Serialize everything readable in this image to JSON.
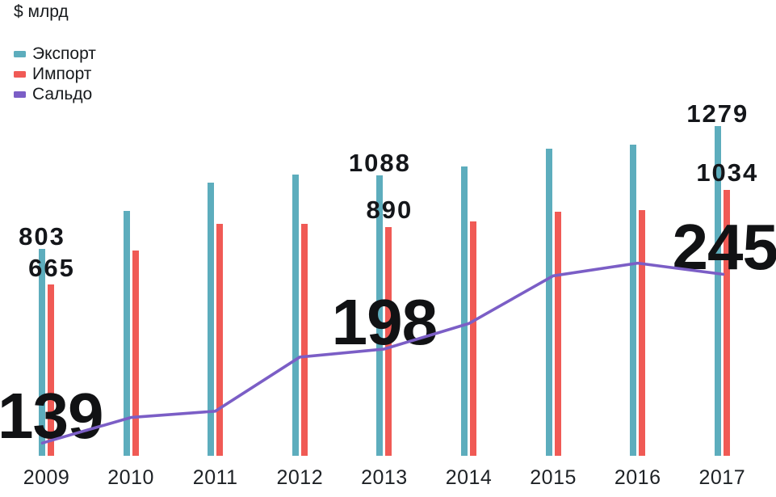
{
  "header": {
    "unit_label": "$ млрд"
  },
  "legend": [
    {
      "label": "Экспорт",
      "color": "#5dadbd"
    },
    {
      "label": "Импорт",
      "color": "#f05a55"
    },
    {
      "label": "Сальдо",
      "color": "#7b5ec6"
    }
  ],
  "chart_data": {
    "type": "bar",
    "title": "",
    "ylabel": "$ млрд",
    "grid": false,
    "axes_hidden": true,
    "legend_position": "top-left",
    "categories": [
      "2009",
      "2010",
      "2011",
      "2012",
      "2013",
      "2014",
      "2015",
      "2016",
      "2017"
    ],
    "series": [
      {
        "name": "Экспорт",
        "type": "bar",
        "color": "#5dadbd",
        "values": [
          803,
          952,
          1061,
          1093,
          1088,
          1124,
          1194,
          1207,
          1279
        ]
      },
      {
        "name": "Импорт",
        "type": "bar",
        "color": "#f05a55",
        "values": [
          665,
          797,
          902,
          900,
          890,
          910,
          949,
          955,
          1034
        ]
      },
      {
        "name": "Сальдо",
        "type": "line",
        "color": "#7b5ec6",
        "values": [
          139,
          155,
          159,
          193,
          198,
          214,
          244,
          252,
          245
        ]
      }
    ],
    "annotations": {
      "labeled_indices": [
        0,
        4,
        8
      ],
      "export_labels": [
        "803",
        "1088",
        "1279"
      ],
      "import_labels": [
        "665",
        "890",
        "1034"
      ],
      "saldo_labels": [
        "139",
        "198",
        "245"
      ]
    }
  }
}
